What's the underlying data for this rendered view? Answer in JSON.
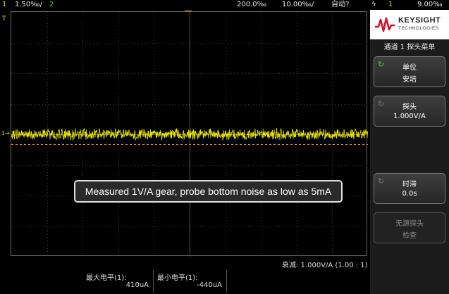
{
  "topbar": {
    "ch1_num": "1",
    "ch1_scale": "1.50‰/",
    "ch2_num": "2",
    "time_pos": "200.0‰",
    "time_scale": "10.00‰/",
    "trig_mode": "自动?",
    "trig_icon": "ϟ",
    "trig_ch": "1",
    "trig_level": "9.00‰"
  },
  "screen": {
    "ch_marker": "1→",
    "t_marker": "T",
    "caption": "Measured 1V/A gear, probe bottom noise as low as 5mA"
  },
  "bottom": {
    "attenuation": "衰减: 1.000V/A (1.00 : 1)",
    "max_label": "最大电平(1):",
    "max_value": "410uA",
    "min_label": "最小电平(1):",
    "min_value": "-440uA"
  },
  "panel": {
    "brand": "KEYSIGHT",
    "brand_sub": "TECHNOLOGIES",
    "menu_title": "通道 1 探头菜单",
    "softkeys": [
      {
        "t1": "单位",
        "t2": "安培"
      },
      {
        "t1": "探头",
        "t2": "1.000V/A"
      },
      {
        "t1": "时滞",
        "t2": "0.0s"
      },
      {
        "t1": "无源探头",
        "t2": "检查"
      }
    ]
  },
  "colors": {
    "ch1": "#e8e400",
    "ch2": "#3fd23f",
    "trigger": "#ff8a1e"
  }
}
